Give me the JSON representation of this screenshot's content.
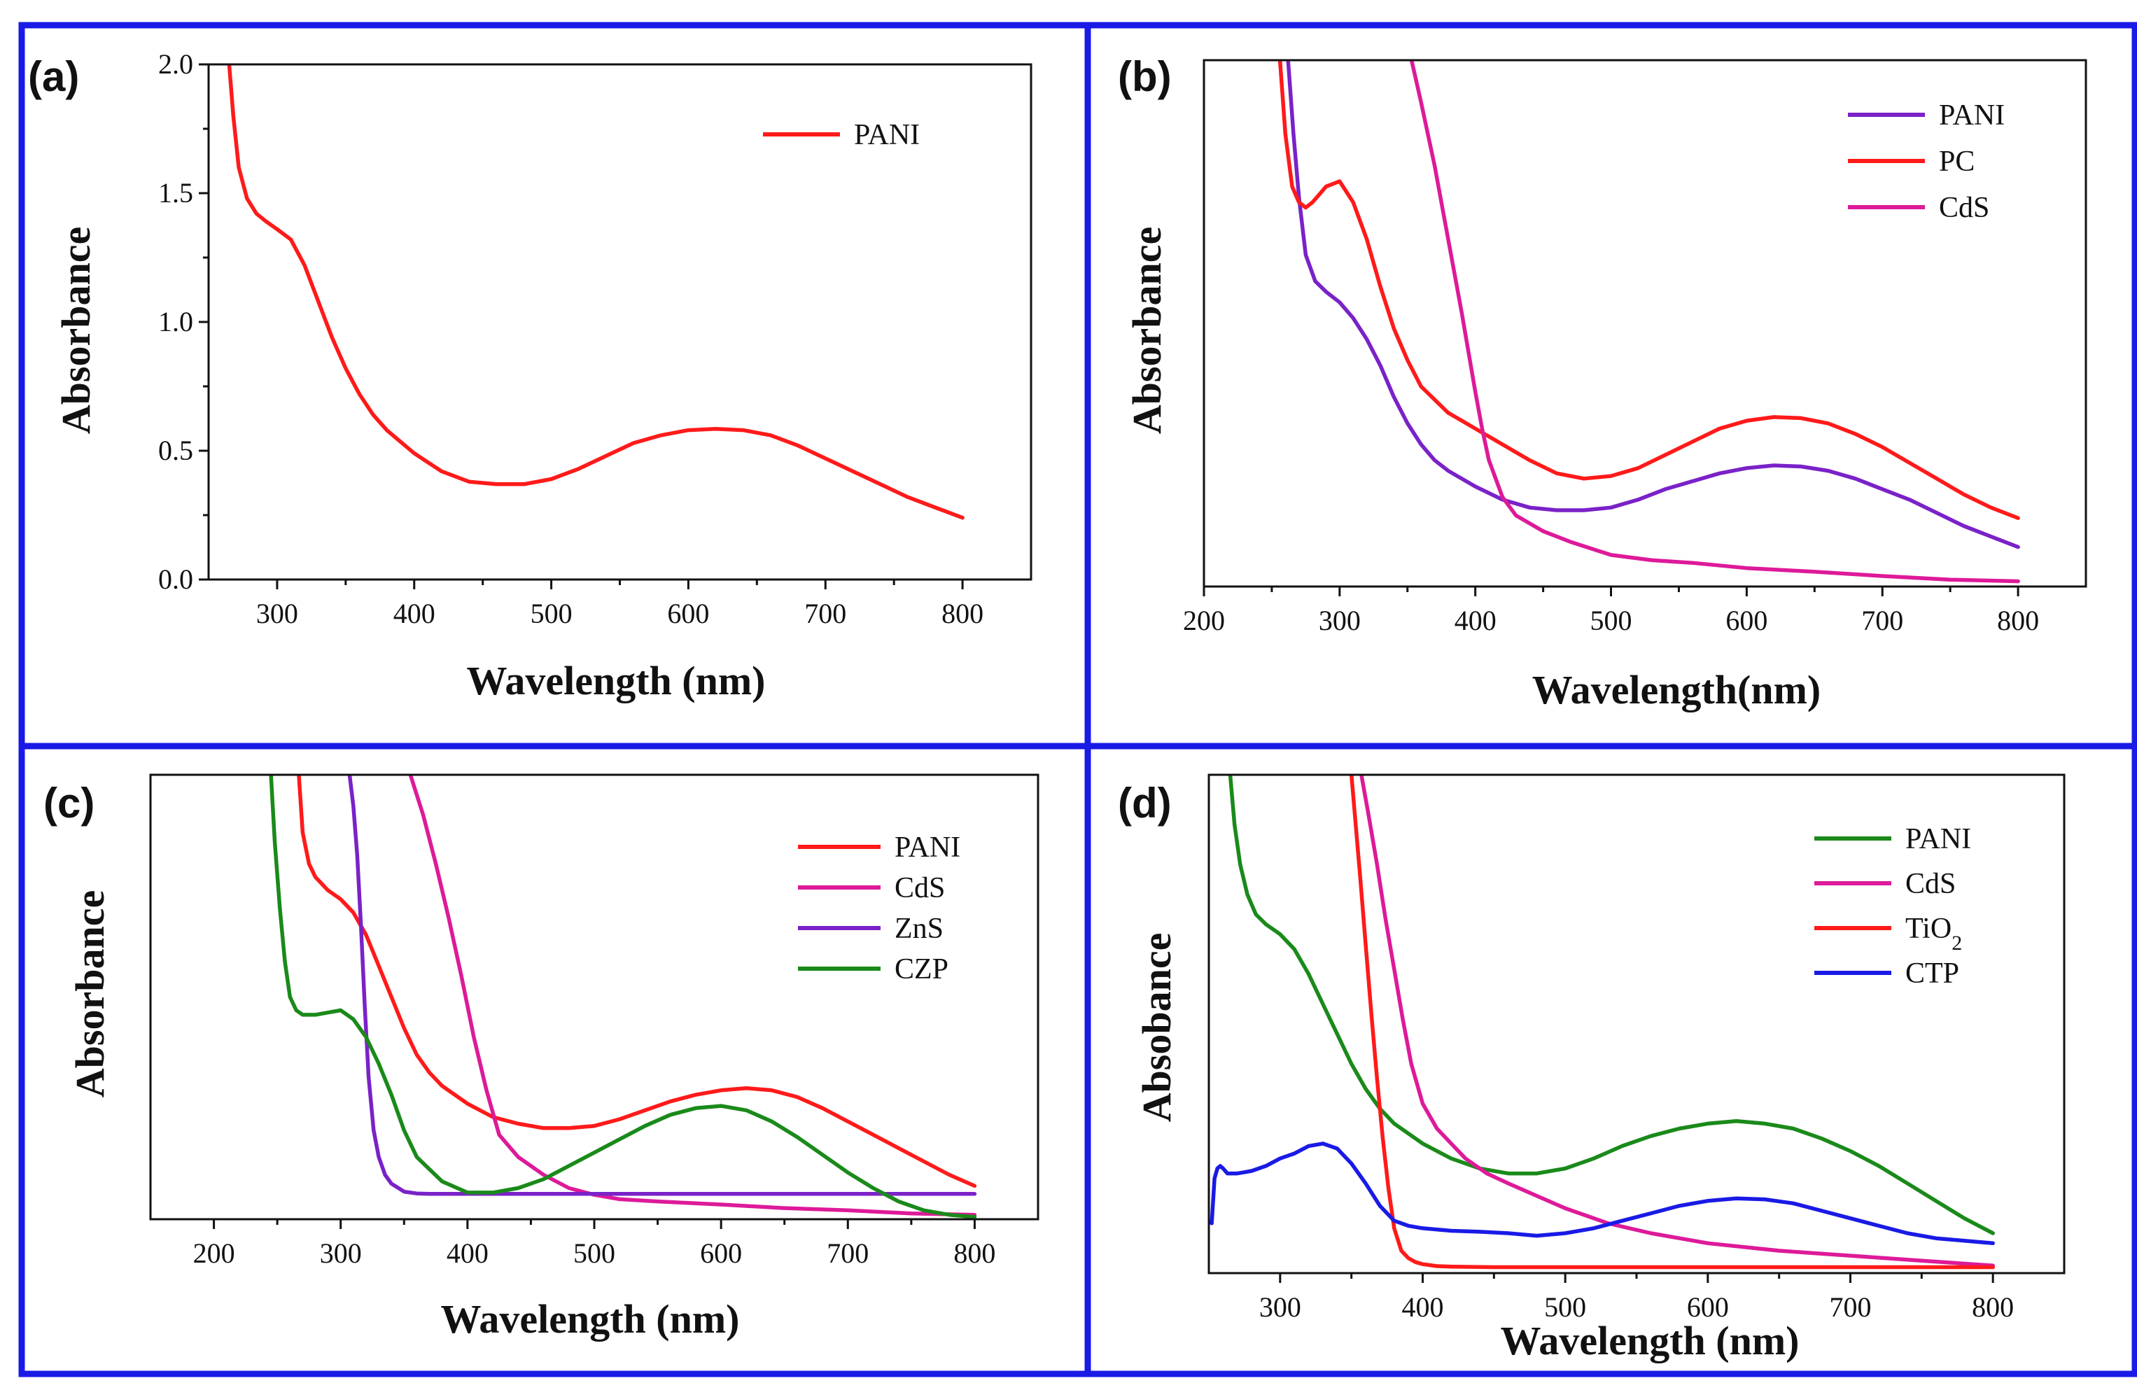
{
  "chart_data": [
    {
      "id": "a",
      "panel_label": "(a)",
      "type": "line",
      "xlabel": "Wavelength (nm)",
      "ylabel": "Absorbance",
      "xlim": [
        250,
        850
      ],
      "ylim": [
        0,
        2.0
      ],
      "xticks": [
        300,
        400,
        500,
        600,
        700,
        800
      ],
      "xtick_labels": [
        "300",
        "400",
        "500",
        "600",
        "700",
        "800"
      ],
      "yticks": [
        0,
        0.5,
        1.0,
        1.5,
        2.0
      ],
      "ytick_labels": [
        "0.0",
        "0.5",
        "1.0",
        "1.5",
        "2.0"
      ],
      "legend_position": "top-right",
      "series": [
        {
          "name": "PANI",
          "color": "#ff1a1a",
          "x": [
            265,
            268,
            272,
            278,
            285,
            292,
            300,
            310,
            320,
            330,
            340,
            350,
            360,
            370,
            380,
            400,
            420,
            440,
            460,
            480,
            500,
            520,
            540,
            560,
            580,
            600,
            620,
            640,
            660,
            680,
            700,
            720,
            740,
            760,
            780,
            800
          ],
          "y": [
            2.0,
            1.8,
            1.6,
            1.48,
            1.42,
            1.39,
            1.36,
            1.32,
            1.22,
            1.08,
            0.94,
            0.82,
            0.72,
            0.64,
            0.58,
            0.49,
            0.42,
            0.38,
            0.37,
            0.37,
            0.39,
            0.43,
            0.48,
            0.53,
            0.56,
            0.58,
            0.585,
            0.58,
            0.56,
            0.52,
            0.47,
            0.42,
            0.37,
            0.32,
            0.28,
            0.24
          ]
        }
      ]
    },
    {
      "id": "b",
      "panel_label": "(b)",
      "type": "line",
      "xlabel": "Wavelength(nm)",
      "ylabel": "Absorbance",
      "xlim": [
        200,
        850
      ],
      "ylim": [
        0,
        1.0
      ],
      "xticks": [
        200,
        300,
        400,
        500,
        600,
        700,
        800
      ],
      "xtick_labels": [
        "200",
        "300",
        "400",
        "500",
        "600",
        "700",
        "800"
      ],
      "yticks": [],
      "ytick_labels": [],
      "legend_position": "top-right",
      "series": [
        {
          "name": "PANI",
          "color": "#7a22c8",
          "x": [
            262,
            266,
            270,
            275,
            282,
            290,
            300,
            310,
            320,
            330,
            340,
            350,
            360,
            370,
            380,
            400,
            420,
            440,
            460,
            480,
            500,
            520,
            540,
            560,
            580,
            600,
            620,
            640,
            660,
            680,
            700,
            720,
            740,
            760,
            780,
            800
          ],
          "y": [
            1.0,
            0.86,
            0.74,
            0.63,
            0.58,
            0.56,
            0.54,
            0.51,
            0.47,
            0.42,
            0.36,
            0.31,
            0.27,
            0.24,
            0.22,
            0.19,
            0.165,
            0.15,
            0.145,
            0.145,
            0.15,
            0.165,
            0.185,
            0.2,
            0.215,
            0.225,
            0.23,
            0.228,
            0.22,
            0.205,
            0.185,
            0.165,
            0.14,
            0.115,
            0.095,
            0.075
          ]
        },
        {
          "name": "PC",
          "color": "#ff1a1a",
          "x": [
            256,
            260,
            265,
            270,
            275,
            280,
            285,
            290,
            300,
            310,
            320,
            330,
            340,
            350,
            360,
            380,
            400,
            420,
            440,
            460,
            480,
            500,
            520,
            540,
            560,
            580,
            600,
            620,
            640,
            660,
            680,
            700,
            720,
            740,
            760,
            780,
            800
          ],
          "y": [
            1.0,
            0.86,
            0.76,
            0.73,
            0.72,
            0.73,
            0.745,
            0.76,
            0.77,
            0.73,
            0.66,
            0.57,
            0.49,
            0.43,
            0.38,
            0.33,
            0.3,
            0.27,
            0.24,
            0.215,
            0.205,
            0.21,
            0.225,
            0.25,
            0.275,
            0.3,
            0.315,
            0.322,
            0.32,
            0.31,
            0.29,
            0.265,
            0.235,
            0.205,
            0.175,
            0.15,
            0.13
          ]
        },
        {
          "name": "CdS",
          "color": "#dd1a99",
          "x": [
            353,
            360,
            370,
            380,
            390,
            400,
            405,
            410,
            420,
            430,
            450,
            470,
            500,
            530,
            560,
            600,
            650,
            700,
            750,
            800
          ],
          "y": [
            1.0,
            0.92,
            0.8,
            0.66,
            0.52,
            0.37,
            0.3,
            0.24,
            0.17,
            0.135,
            0.105,
            0.085,
            0.06,
            0.05,
            0.045,
            0.035,
            0.028,
            0.02,
            0.013,
            0.01
          ]
        }
      ]
    },
    {
      "id": "c",
      "panel_label": "(c)",
      "type": "line",
      "xlabel": "Wavelength (nm)",
      "ylabel": "Absorbance",
      "xlim": [
        150,
        850
      ],
      "ylim": [
        0,
        1.0
      ],
      "xticks": [
        200,
        300,
        400,
        500,
        600,
        700,
        800
      ],
      "xtick_labels": [
        "200",
        "300",
        "400",
        "500",
        "600",
        "700",
        "800"
      ],
      "yticks": [],
      "ytick_labels": [],
      "legend_position": "top-right",
      "series": [
        {
          "name": "PANI",
          "color": "#ff1a1a",
          "x": [
            267,
            270,
            275,
            280,
            290,
            300,
            310,
            320,
            330,
            340,
            350,
            360,
            370,
            380,
            400,
            420,
            440,
            460,
            480,
            500,
            520,
            540,
            560,
            580,
            600,
            620,
            640,
            660,
            680,
            700,
            720,
            740,
            760,
            780,
            800
          ],
          "y": [
            1.0,
            0.87,
            0.8,
            0.77,
            0.74,
            0.72,
            0.69,
            0.64,
            0.57,
            0.5,
            0.43,
            0.37,
            0.33,
            0.3,
            0.26,
            0.23,
            0.215,
            0.205,
            0.205,
            0.21,
            0.225,
            0.245,
            0.265,
            0.28,
            0.29,
            0.295,
            0.29,
            0.275,
            0.25,
            0.22,
            0.19,
            0.16,
            0.13,
            0.1,
            0.075
          ]
        },
        {
          "name": "CdS",
          "color": "#dd1a99",
          "x": [
            355,
            365,
            375,
            385,
            395,
            405,
            415,
            425,
            440,
            460,
            480,
            500,
            520,
            550,
            600,
            650,
            700,
            750,
            800
          ],
          "y": [
            1.0,
            0.91,
            0.8,
            0.68,
            0.55,
            0.41,
            0.29,
            0.19,
            0.14,
            0.1,
            0.07,
            0.055,
            0.045,
            0.04,
            0.033,
            0.025,
            0.02,
            0.013,
            0.01
          ]
        },
        {
          "name": "ZnS",
          "color": "#7a22c8",
          "x": [
            307,
            310,
            313,
            316,
            319,
            322,
            326,
            330,
            335,
            340,
            350,
            360,
            370,
            400,
            450,
            500,
            550,
            600,
            650,
            700,
            750,
            800
          ],
          "y": [
            1.0,
            0.93,
            0.82,
            0.66,
            0.48,
            0.32,
            0.2,
            0.14,
            0.1,
            0.08,
            0.062,
            0.058,
            0.057,
            0.057,
            0.057,
            0.057,
            0.057,
            0.057,
            0.057,
            0.057,
            0.057,
            0.057
          ]
        },
        {
          "name": "CZP",
          "color": "#1a8a1a",
          "x": [
            245,
            248,
            252,
            256,
            260,
            265,
            270,
            280,
            290,
            300,
            310,
            320,
            330,
            340,
            350,
            360,
            380,
            400,
            420,
            440,
            460,
            480,
            500,
            520,
            540,
            560,
            580,
            600,
            620,
            640,
            660,
            680,
            700,
            720,
            740,
            760,
            780,
            800
          ],
          "y": [
            1.0,
            0.85,
            0.7,
            0.58,
            0.5,
            0.47,
            0.46,
            0.46,
            0.465,
            0.47,
            0.45,
            0.41,
            0.35,
            0.28,
            0.2,
            0.14,
            0.085,
            0.06,
            0.06,
            0.07,
            0.09,
            0.12,
            0.15,
            0.18,
            0.21,
            0.235,
            0.25,
            0.255,
            0.245,
            0.22,
            0.185,
            0.145,
            0.105,
            0.07,
            0.04,
            0.02,
            0.01,
            0.005
          ]
        }
      ]
    },
    {
      "id": "d",
      "panel_label": "(d)",
      "type": "line",
      "xlabel": "Wavelength (nm)",
      "ylabel": "Absobance",
      "xlim": [
        250,
        850
      ],
      "ylim": [
        0,
        1.0
      ],
      "xticks": [
        300,
        400,
        500,
        600,
        700,
        800
      ],
      "xtick_labels": [
        "300",
        "400",
        "500",
        "600",
        "700",
        "800"
      ],
      "yticks": [],
      "ytick_labels": [],
      "legend_position": "top-right",
      "series": [
        {
          "name": "PANI",
          "color": "#1a8a1a",
          "x": [
            265,
            268,
            272,
            277,
            283,
            290,
            300,
            310,
            320,
            330,
            340,
            350,
            360,
            370,
            380,
            400,
            420,
            440,
            460,
            480,
            500,
            520,
            540,
            560,
            580,
            600,
            620,
            640,
            660,
            680,
            700,
            720,
            740,
            760,
            780,
            800
          ],
          "y": [
            1.0,
            0.9,
            0.82,
            0.76,
            0.72,
            0.7,
            0.68,
            0.65,
            0.6,
            0.54,
            0.48,
            0.42,
            0.37,
            0.33,
            0.3,
            0.26,
            0.23,
            0.21,
            0.2,
            0.2,
            0.21,
            0.23,
            0.255,
            0.275,
            0.29,
            0.3,
            0.305,
            0.3,
            0.29,
            0.27,
            0.245,
            0.215,
            0.18,
            0.145,
            0.11,
            0.08
          ]
        },
        {
          "name": "CdS",
          "color": "#dd1a99",
          "x": [
            357,
            362,
            368,
            374,
            380,
            386,
            392,
            400,
            410,
            420,
            430,
            445,
            460,
            480,
            500,
            530,
            560,
            600,
            650,
            700,
            750,
            800
          ],
          "y": [
            1.0,
            0.92,
            0.82,
            0.71,
            0.61,
            0.51,
            0.42,
            0.34,
            0.29,
            0.26,
            0.23,
            0.2,
            0.18,
            0.155,
            0.13,
            0.1,
            0.08,
            0.06,
            0.045,
            0.035,
            0.025,
            0.015
          ]
        },
        {
          "name": "TiO2",
          "color": "#ff1a1a",
          "x": [
            350,
            353,
            356,
            360,
            364,
            368,
            372,
            376,
            380,
            385,
            390,
            395,
            400,
            410,
            420,
            450,
            500,
            600,
            700,
            800
          ],
          "y": [
            1.0,
            0.9,
            0.8,
            0.66,
            0.52,
            0.39,
            0.27,
            0.17,
            0.09,
            0.045,
            0.03,
            0.022,
            0.018,
            0.014,
            0.013,
            0.012,
            0.012,
            0.012,
            0.012,
            0.012
          ]
        },
        {
          "name": "CTP",
          "color": "#1a1ae6",
          "x": [
            252,
            254,
            256,
            258,
            260,
            263,
            266,
            270,
            280,
            290,
            300,
            310,
            320,
            330,
            340,
            350,
            360,
            370,
            380,
            390,
            400,
            420,
            440,
            460,
            480,
            500,
            520,
            540,
            560,
            580,
            600,
            620,
            640,
            660,
            680,
            700,
            720,
            740,
            760,
            780,
            800
          ],
          "y": [
            0.1,
            0.19,
            0.21,
            0.215,
            0.21,
            0.2,
            0.2,
            0.2,
            0.205,
            0.215,
            0.23,
            0.24,
            0.255,
            0.26,
            0.25,
            0.22,
            0.18,
            0.135,
            0.105,
            0.095,
            0.09,
            0.085,
            0.083,
            0.08,
            0.075,
            0.08,
            0.09,
            0.105,
            0.12,
            0.135,
            0.145,
            0.15,
            0.148,
            0.14,
            0.125,
            0.11,
            0.095,
            0.08,
            0.07,
            0.065,
            0.06
          ]
        }
      ]
    }
  ]
}
